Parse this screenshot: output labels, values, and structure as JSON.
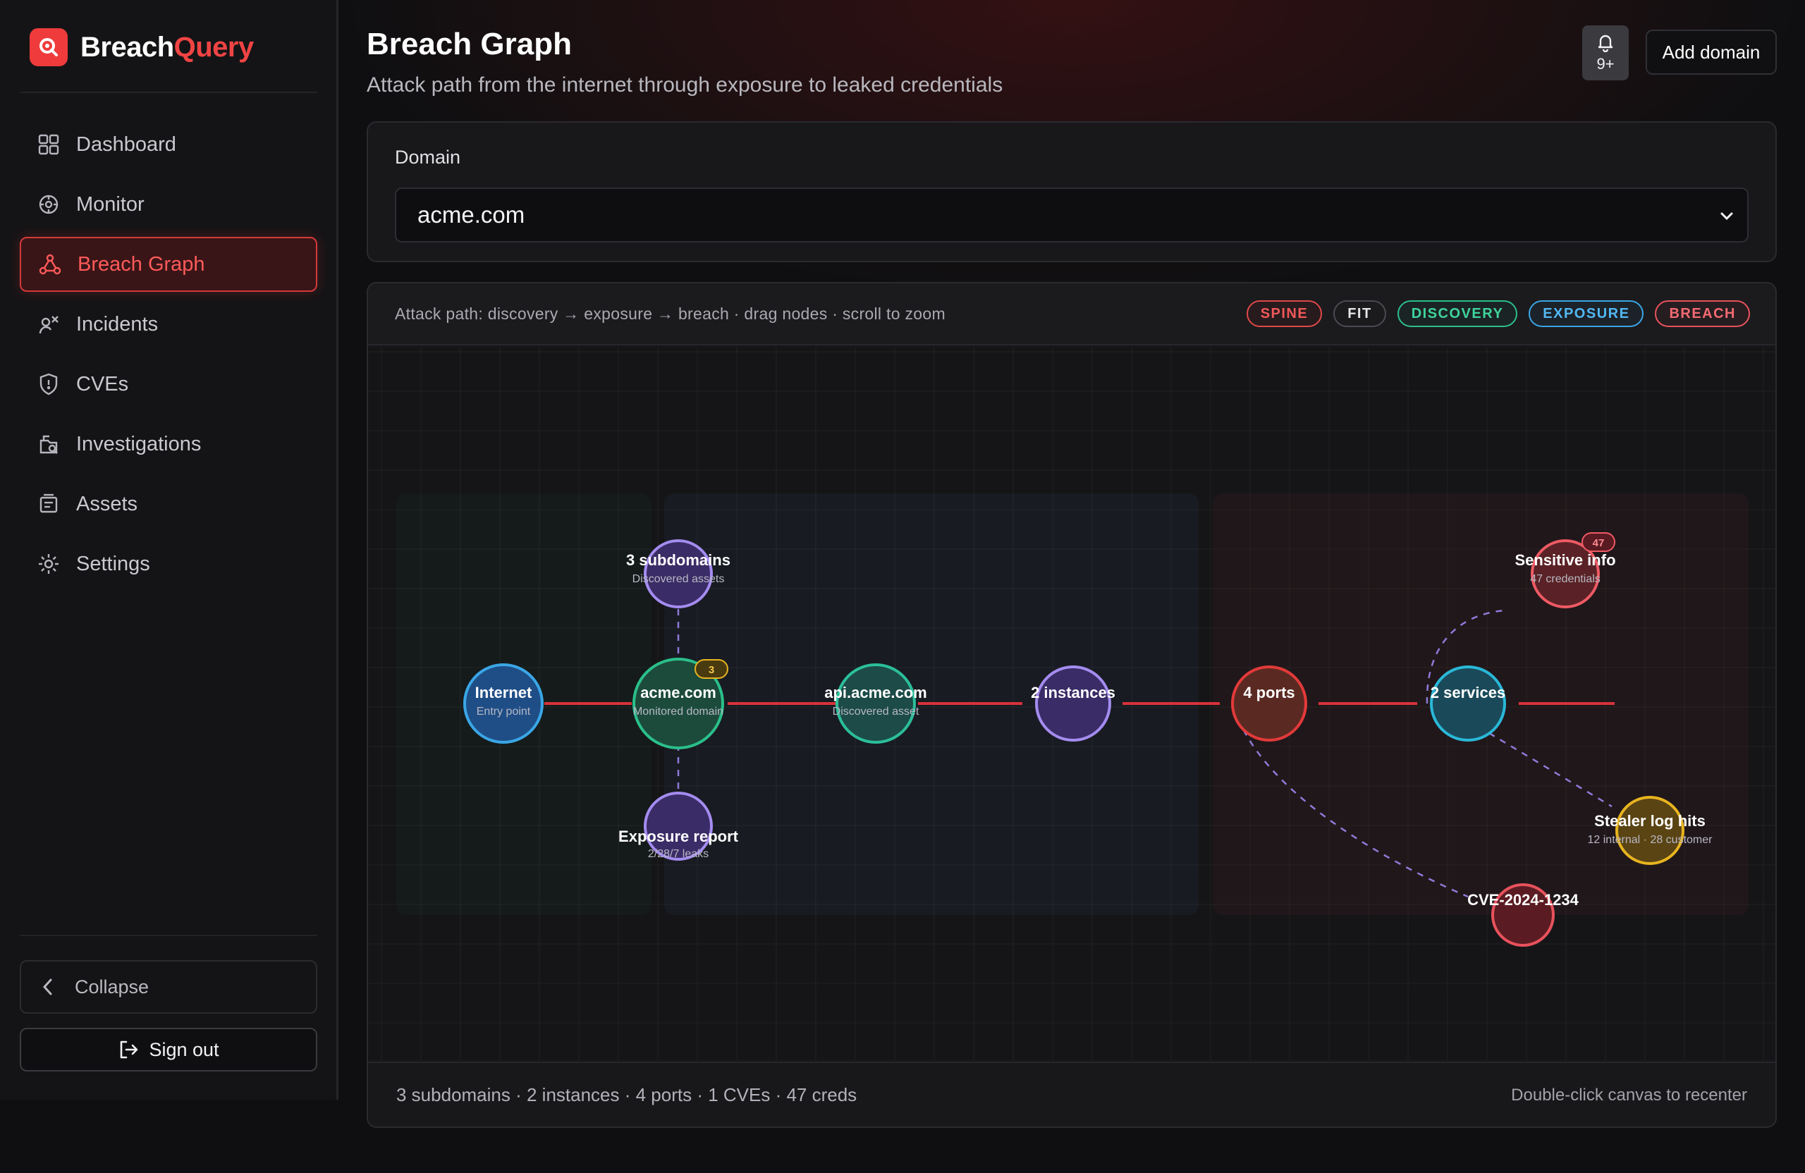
{
  "app": {
    "brand_part1": "Breach",
    "brand_part2": "Query"
  },
  "sidebar": {
    "items": [
      {
        "label": "Dashboard",
        "icon": "dashboard-icon"
      },
      {
        "label": "Monitor",
        "icon": "monitor-icon"
      },
      {
        "label": "Breach Graph",
        "icon": "graph-icon",
        "active": true
      },
      {
        "label": "Incidents",
        "icon": "incidents-icon"
      },
      {
        "label": "CVEs",
        "icon": "shield-icon"
      },
      {
        "label": "Investigations",
        "icon": "investigations-icon"
      },
      {
        "label": "Assets",
        "icon": "assets-icon"
      },
      {
        "label": "Settings",
        "icon": "gear-icon"
      }
    ],
    "collapse_label": "Collapse",
    "signout_label": "Sign out"
  },
  "header": {
    "title": "Breach Graph",
    "subtitle": "Attack path from the internet through exposure to leaked credentials",
    "notifications": "9+",
    "add_domain_label": "Add domain"
  },
  "domain": {
    "label": "Domain",
    "selected": "acme.com"
  },
  "graph": {
    "hint": "Attack path: discovery → exposure → breach · drag nodes · scroll to zoom",
    "pills": [
      "SPINE",
      "FIT",
      "DISCOVERY",
      "EXPOSURE",
      "BREACH"
    ],
    "nodes": {
      "internet": {
        "title": "Internet",
        "sub": "Entry point"
      },
      "acme": {
        "title": "acme.com",
        "sub": "Monitored domain",
        "badge": "3"
      },
      "subdomains": {
        "title": "3 subdomains",
        "sub": "Discovered assets"
      },
      "exposure": {
        "title": "Exposure report",
        "sub": "2/28/7 leaks"
      },
      "api": {
        "title": "api.acme.com",
        "sub": "Discovered asset"
      },
      "instances": {
        "title": "2 instances",
        "sub": ""
      },
      "ports": {
        "title": "4 ports",
        "sub": ""
      },
      "services": {
        "title": "2 services",
        "sub": ""
      },
      "sensitive": {
        "title": "Sensitive info",
        "sub": "47 credentials",
        "badge": "47"
      },
      "stealer": {
        "title": "Stealer log hits",
        "sub": "12 internal · 28 customer"
      },
      "cve": {
        "title": "CVE-2024-1234",
        "sub": ""
      }
    },
    "footer_stats": "3 subdomains · 2 instances · 4 ports · 1 CVEs · 47 creds",
    "footer_hint": "Double-click canvas to recenter",
    "colors": {
      "spine": "#d8323a",
      "discovery": "#2bbf8a",
      "exposure": "#3aa6e6",
      "breach": "#e8525c",
      "purple": "#a48cf0",
      "gold": "#e8b420"
    }
  }
}
